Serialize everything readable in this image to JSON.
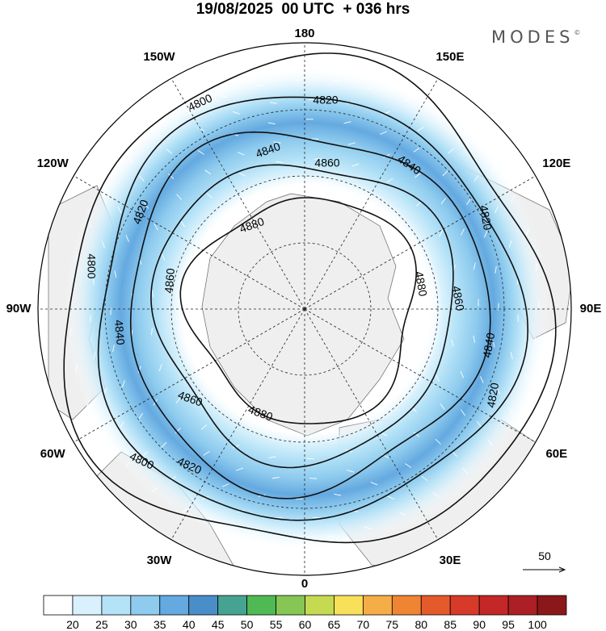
{
  "title": "19/08/2025  00 UTC  + 036 hrs",
  "logo": "MODES",
  "logo_mark": "©",
  "longitude_labels": [
    {
      "text": "180",
      "lon": 180
    },
    {
      "text": "150E",
      "lon": 150
    },
    {
      "text": "120E",
      "lon": 120
    },
    {
      "text": "90E",
      "lon": 90
    },
    {
      "text": "60E",
      "lon": 60
    },
    {
      "text": "30E",
      "lon": 30
    },
    {
      "text": "0",
      "lon": 0
    },
    {
      "text": "30W",
      "lon": -30
    },
    {
      "text": "60W",
      "lon": -60
    },
    {
      "text": "90W",
      "lon": -90
    },
    {
      "text": "120W",
      "lon": -120
    },
    {
      "text": "150W",
      "lon": -150
    }
  ],
  "contours": [
    "4800",
    "4820",
    "4840",
    "4860",
    "4880"
  ],
  "reference_vector": "50",
  "colorbar": {
    "ticks": [
      "20",
      "25",
      "30",
      "35",
      "40",
      "45",
      "50",
      "55",
      "60",
      "65",
      "70",
      "75",
      "80",
      "85",
      "90",
      "95",
      "100"
    ],
    "colors": [
      "#ffffff",
      "#d8f1fc",
      "#b4e2f7",
      "#8ecbee",
      "#64a9e0",
      "#4a8ec9",
      "#47a391",
      "#4fb954",
      "#86c654",
      "#c5da50",
      "#f9e05a",
      "#f5ad48",
      "#ef8433",
      "#e55a2b",
      "#d83a2a",
      "#c42727",
      "#ab1f25",
      "#8a1719"
    ]
  },
  "colors": {
    "land": "#efefef",
    "coast": "#666666",
    "contour": "#111111",
    "vector": "#ffffff"
  }
}
